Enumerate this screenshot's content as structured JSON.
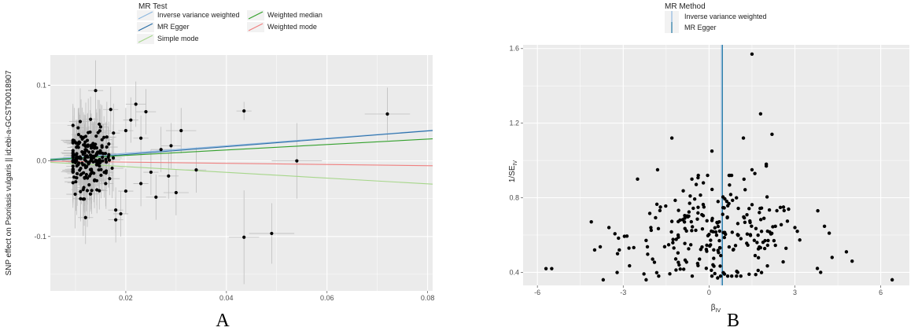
{
  "colors": {
    "panel_bg": "#ebebeb",
    "grid": "#ffffff",
    "point": "#000000",
    "errorbar": "#bdbdbd",
    "ivw": "#8fb8e0",
    "mr_egger": "#2c6fa8",
    "simple_mode": "#a6d68a",
    "weighted_median": "#33a02c",
    "weighted_mode": "#f08080",
    "vline": "#1f78a4"
  },
  "panel_labels": [
    "A",
    "B"
  ],
  "chart_data": [
    {
      "type": "scatter",
      "panel": "A",
      "xlabel": "",
      "ylabel": "SNP effect on Psoriasis vulgaris || id:ebi-a-GCST90018907",
      "xlim": [
        0.005,
        0.081
      ],
      "ylim": [
        -0.172,
        0.14
      ],
      "xticks": [
        0.02,
        0.04,
        0.06,
        0.08
      ],
      "xtick_labels": [
        "0.02",
        "0.04",
        "0.06",
        "0.08"
      ],
      "yticks": [
        -0.1,
        0.0,
        0.1
      ],
      "ytick_labels": [
        "-0.1",
        "0.0",
        "0.1"
      ],
      "grid": true,
      "legend": {
        "title": "MR Test",
        "position": "top",
        "entries": [
          {
            "name": "Inverse variance weighted",
            "color_key": "ivw"
          },
          {
            "name": "Weighted median",
            "color_key": "weighted_median"
          },
          {
            "name": "MR Egger",
            "color_key": "mr_egger"
          },
          {
            "name": "Weighted mode",
            "color_key": "weighted_mode"
          },
          {
            "name": "Simple mode",
            "color_key": "simple_mode"
          }
        ]
      },
      "lines": [
        {
          "name": "Inverse variance weighted",
          "color_key": "ivw",
          "intercept": 0.0,
          "slope": 0.5
        },
        {
          "name": "MR Egger",
          "color_key": "mr_egger",
          "intercept": -0.002,
          "slope": 0.52
        },
        {
          "name": "Simple mode",
          "color_key": "simple_mode",
          "intercept": 0.0,
          "slope": -0.38
        },
        {
          "name": "Weighted median",
          "color_key": "weighted_median",
          "intercept": 0.0,
          "slope": 0.36
        },
        {
          "name": "Weighted mode",
          "color_key": "weighted_mode",
          "intercept": 0.0,
          "slope": -0.08
        }
      ],
      "points": [
        {
          "x": 0.072,
          "y": 0.062,
          "xerr": 0.0045,
          "yerr": 0.035
        },
        {
          "x": 0.0435,
          "y": 0.066,
          "xerr": 0.0015,
          "yerr": 0.012
        },
        {
          "x": 0.054,
          "y": 0.0,
          "xerr": 0.005,
          "yerr": 0.05
        },
        {
          "x": 0.0435,
          "y": -0.101,
          "xerr": 0.003,
          "yerr": 0.062
        },
        {
          "x": 0.049,
          "y": -0.096,
          "xerr": 0.0045,
          "yerr": 0.04
        },
        {
          "x": 0.034,
          "y": -0.012,
          "xerr": 0.002,
          "yerr": 0.03
        },
        {
          "x": 0.031,
          "y": 0.04,
          "xerr": 0.003,
          "yerr": 0.03
        },
        {
          "x": 0.03,
          "y": -0.042,
          "xerr": 0.0025,
          "yerr": 0.03
        },
        {
          "x": 0.0285,
          "y": -0.02,
          "xerr": 0.002,
          "yerr": 0.03
        },
        {
          "x": 0.029,
          "y": 0.02,
          "xerr": 0.002,
          "yerr": 0.03
        },
        {
          "x": 0.027,
          "y": 0.015,
          "xerr": 0.002,
          "yerr": 0.03
        },
        {
          "x": 0.026,
          "y": -0.048,
          "xerr": 0.002,
          "yerr": 0.03
        },
        {
          "x": 0.022,
          "y": 0.075,
          "xerr": 0.002,
          "yerr": 0.03
        },
        {
          "x": 0.024,
          "y": 0.065,
          "xerr": 0.002,
          "yerr": 0.03
        },
        {
          "x": 0.014,
          "y": 0.093,
          "xerr": 0.0015,
          "yerr": 0.04
        },
        {
          "x": 0.012,
          "y": -0.075,
          "xerr": 0.0015,
          "yerr": 0.035
        },
        {
          "x": 0.018,
          "y": -0.065,
          "xerr": 0.0015,
          "yerr": 0.03
        },
        {
          "x": 0.018,
          "y": -0.078,
          "xerr": 0.0015,
          "yerr": 0.03
        },
        {
          "x": 0.019,
          "y": -0.07,
          "xerr": 0.0015,
          "yerr": 0.03
        },
        {
          "x": 0.017,
          "y": 0.068,
          "xerr": 0.0015,
          "yerr": 0.03
        },
        {
          "x": 0.021,
          "y": 0.054,
          "xerr": 0.0015,
          "yerr": 0.03
        },
        {
          "x": 0.02,
          "y": 0.04,
          "xerr": 0.0015,
          "yerr": 0.03
        },
        {
          "x": 0.023,
          "y": 0.03,
          "xerr": 0.0015,
          "yerr": 0.03
        },
        {
          "x": 0.025,
          "y": -0.015,
          "xerr": 0.0015,
          "yerr": 0.03
        },
        {
          "x": 0.023,
          "y": -0.03,
          "xerr": 0.0015,
          "yerr": 0.03
        },
        {
          "x": 0.02,
          "y": -0.04,
          "xerr": 0.0015,
          "yerr": 0.03
        },
        {
          "x": 0.015,
          "y": 0.045,
          "xerr": 0.0015,
          "yerr": 0.03
        },
        {
          "x": 0.016,
          "y": -0.03,
          "xerr": 0.0015,
          "yerr": 0.03
        },
        {
          "x": 0.013,
          "y": 0.055,
          "xerr": 0.0015,
          "yerr": 0.03
        },
        {
          "x": 0.011,
          "y": -0.05,
          "xerr": 0.0015,
          "yerr": 0.03
        }
      ],
      "cluster": {
        "x_center": 0.0125,
        "x_spread": 0.0045,
        "y_center": 0.002,
        "y_spread": 0.04,
        "count": 200
      }
    },
    {
      "type": "scatter",
      "panel": "B",
      "xlabel": "β",
      "xlabel_sub": "IV",
      "ylabel": "1/SE",
      "ylabel_sub": "IV",
      "xlim": [
        -6.5,
        7.0
      ],
      "ylim": [
        0.33,
        1.62
      ],
      "xticks": [
        -6,
        -3,
        0,
        3,
        6
      ],
      "xtick_labels": [
        "-6",
        "-3",
        "0",
        "3",
        "6"
      ],
      "yticks": [
        0.4,
        0.8,
        1.2,
        1.6
      ],
      "ytick_labels": [
        "0.4",
        "0.8",
        "1.2",
        "1.6"
      ],
      "grid": true,
      "legend": {
        "title": "MR Method",
        "position": "top",
        "entries": [
          {
            "name": "Inverse variance weighted",
            "color_key": "ivw"
          },
          {
            "name": "MR Egger",
            "color_key": "mr_egger"
          }
        ]
      },
      "vlines": [
        {
          "name": "Inverse variance weighted",
          "x": 0.45,
          "color_key": "ivw"
        },
        {
          "name": "MR Egger",
          "x": 0.45,
          "color_key": "vline"
        }
      ],
      "points": [
        {
          "x": 1.5,
          "y": 1.57
        },
        {
          "x": 1.8,
          "y": 1.25
        },
        {
          "x": 2.2,
          "y": 1.14
        },
        {
          "x": -1.3,
          "y": 1.12
        },
        {
          "x": 1.2,
          "y": 1.12
        },
        {
          "x": 0.1,
          "y": 1.05
        },
        {
          "x": 2.0,
          "y": 0.98
        },
        {
          "x": 2.0,
          "y": 0.97
        },
        {
          "x": 1.5,
          "y": 0.95
        },
        {
          "x": 1.6,
          "y": 0.93
        },
        {
          "x": -1.8,
          "y": 0.95
        },
        {
          "x": -2.5,
          "y": 0.9
        },
        {
          "x": -0.6,
          "y": 0.9
        },
        {
          "x": -0.2,
          "y": 0.88
        },
        {
          "x": 0.7,
          "y": 0.92
        },
        {
          "x": -5.5,
          "y": 0.42
        },
        {
          "x": -5.7,
          "y": 0.42
        },
        {
          "x": 6.4,
          "y": 0.36
        },
        {
          "x": -3.7,
          "y": 0.36
        },
        {
          "x": -4.0,
          "y": 0.52
        },
        {
          "x": -3.5,
          "y": 0.64
        },
        {
          "x": 5.0,
          "y": 0.46
        },
        {
          "x": 4.8,
          "y": 0.51
        },
        {
          "x": 4.3,
          "y": 0.48
        },
        {
          "x": 4.2,
          "y": 0.61
        },
        {
          "x": 3.8,
          "y": 0.73
        },
        {
          "x": 3.9,
          "y": 0.4
        },
        {
          "x": 0.3,
          "y": 0.37
        },
        {
          "x": 1.0,
          "y": 0.4
        },
        {
          "x": 1.4,
          "y": 0.39
        },
        {
          "x": -2.2,
          "y": 0.36
        },
        {
          "x": -1.7,
          "y": 0.75
        },
        {
          "x": 2.6,
          "y": 0.75
        },
        {
          "x": 3.0,
          "y": 0.64
        },
        {
          "x": -3.2,
          "y": 0.5
        },
        {
          "x": -2.8,
          "y": 0.53
        }
      ],
      "cluster": {
        "x_center": 0.3,
        "x_spread": 1.55,
        "y_center": 0.6,
        "y_spread": 0.07,
        "count": 230
      }
    }
  ]
}
